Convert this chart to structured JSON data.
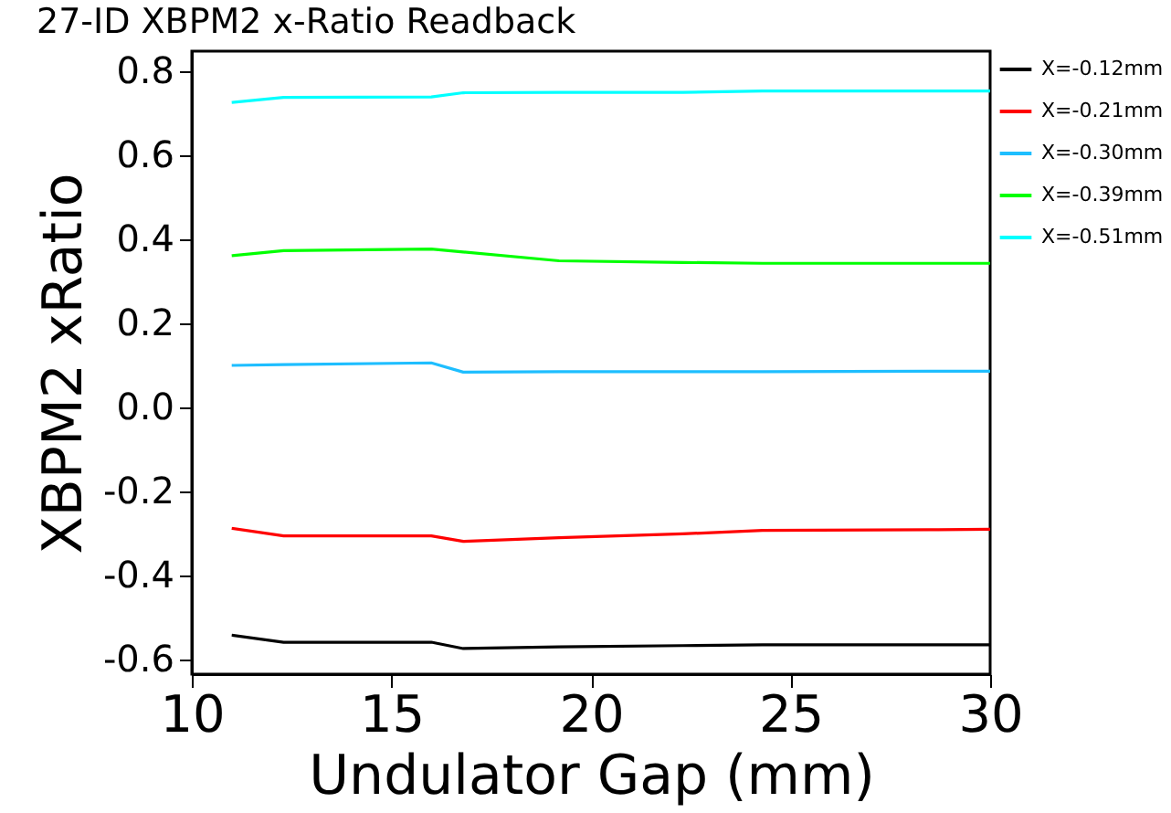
{
  "chart_data": {
    "type": "line",
    "title": "27-ID XBPM2 x-Ratio Readback",
    "xlabel": "Undulator Gap (mm)",
    "ylabel": "XBPM2 xRatio",
    "x": [
      11,
      12.3,
      16,
      16.8,
      19.2,
      22.3,
      24.3,
      28.7,
      30
    ],
    "xlim": [
      10,
      30
    ],
    "xticks": [
      10,
      15,
      20,
      25,
      30
    ],
    "ylim": [
      -0.635,
      0.848
    ],
    "yticks": [
      {
        "value": -0.6,
        "label": "-0.6"
      },
      {
        "value": -0.4,
        "label": "-0.4"
      },
      {
        "value": -0.2,
        "label": "-0.2"
      },
      {
        "value": 0,
        "label": "0.0"
      },
      {
        "value": 0.2,
        "label": "0.2"
      },
      {
        "value": 0.4,
        "label": "0.4"
      },
      {
        "value": 0.6,
        "label": "0.6"
      },
      {
        "value": 0.8,
        "label": "0.8"
      }
    ],
    "grid": false,
    "legend": "right",
    "series": [
      {
        "name": "X=-0.12mm",
        "color": "#000000",
        "values": [
          -0.542,
          -0.559,
          -0.559,
          -0.574,
          -0.57,
          -0.567,
          -0.565,
          -0.565,
          -0.565
        ]
      },
      {
        "name": "X=-0.21mm",
        "color": "#ff0000",
        "values": [
          -0.288,
          -0.306,
          -0.306,
          -0.319,
          -0.31,
          -0.301,
          -0.293,
          -0.291,
          -0.29
        ]
      },
      {
        "name": "X=-0.30mm",
        "color": "#1ebeff",
        "values": [
          0.1,
          0.102,
          0.106,
          0.084,
          0.085,
          0.085,
          0.085,
          0.086,
          0.086
        ]
      },
      {
        "name": "X=-0.39mm",
        "color": "#00ff00",
        "values": [
          0.361,
          0.373,
          0.377,
          0.37,
          0.349,
          0.345,
          0.343,
          0.343,
          0.343
        ]
      },
      {
        "name": "X=-0.51mm",
        "color": "#00ffff",
        "values": [
          0.726,
          0.738,
          0.739,
          0.749,
          0.75,
          0.75,
          0.753,
          0.753,
          0.753
        ]
      }
    ]
  }
}
